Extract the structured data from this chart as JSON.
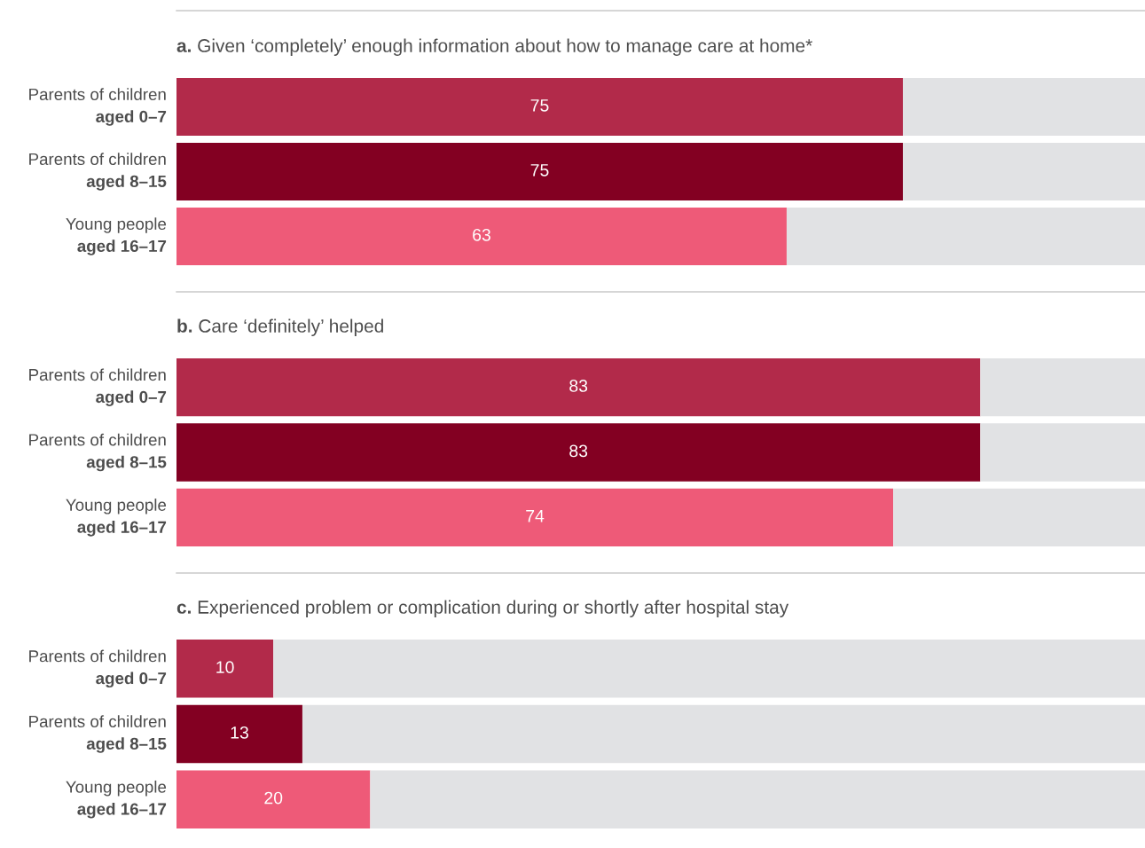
{
  "chart_data": [
    {
      "type": "bar",
      "orientation": "horizontal",
      "stacked": true,
      "title": "a. Given ‘completely’ enough information about how to manage care at home*",
      "categories": [
        "Parents of children\naged 0–7",
        "Parents of children\naged 8–15",
        "Young people\naged 16–17"
      ],
      "xlim": [
        0,
        100
      ],
      "series": [
        {
          "colors": [
            "#b22a4a",
            "#830022",
            "#ee5a78"
          ],
          "values": [
            75,
            75,
            63
          ],
          "value_labels": [
            "75",
            "75",
            "63"
          ]
        },
        {
          "color": "#e1e2e4",
          "values": [
            25,
            25,
            37
          ],
          "value_labels": [
            null,
            null,
            null
          ]
        }
      ]
    },
    {
      "type": "bar",
      "orientation": "horizontal",
      "stacked": true,
      "title": "b. Care ‘definitely’ helped",
      "categories": [
        "Parents of children\naged 0–7",
        "Parents of children\naged 8–15",
        "Young people\naged 16–17"
      ],
      "xlim": [
        0,
        100
      ],
      "series": [
        {
          "colors": [
            "#b22a4a",
            "#830022",
            "#ee5a78"
          ],
          "values": [
            83,
            83,
            74
          ],
          "value_labels": [
            "83",
            "83",
            "74"
          ]
        },
        {
          "color": "#e1e2e4",
          "values": [
            17,
            17,
            26
          ],
          "value_labels": [
            null,
            null,
            null
          ]
        }
      ]
    },
    {
      "type": "bar",
      "orientation": "horizontal",
      "stacked": true,
      "title": "c. Experienced problem or complication during or shortly after hospital stay",
      "categories": [
        "Parents of children\naged 0–7",
        "Parents of children\naged 8–15",
        "Young people\naged 16–17"
      ],
      "xlim": [
        0,
        100
      ],
      "series": [
        {
          "colors": [
            "#b22a4a",
            "#830022",
            "#ee5a78"
          ],
          "values": [
            10,
            13,
            20
          ],
          "value_labels": [
            "10",
            "13",
            "20"
          ]
        },
        {
          "color": "#e1e2e4",
          "values": [
            90,
            87,
            80
          ],
          "value_labels": [
            null,
            null,
            null
          ]
        }
      ]
    }
  ]
}
